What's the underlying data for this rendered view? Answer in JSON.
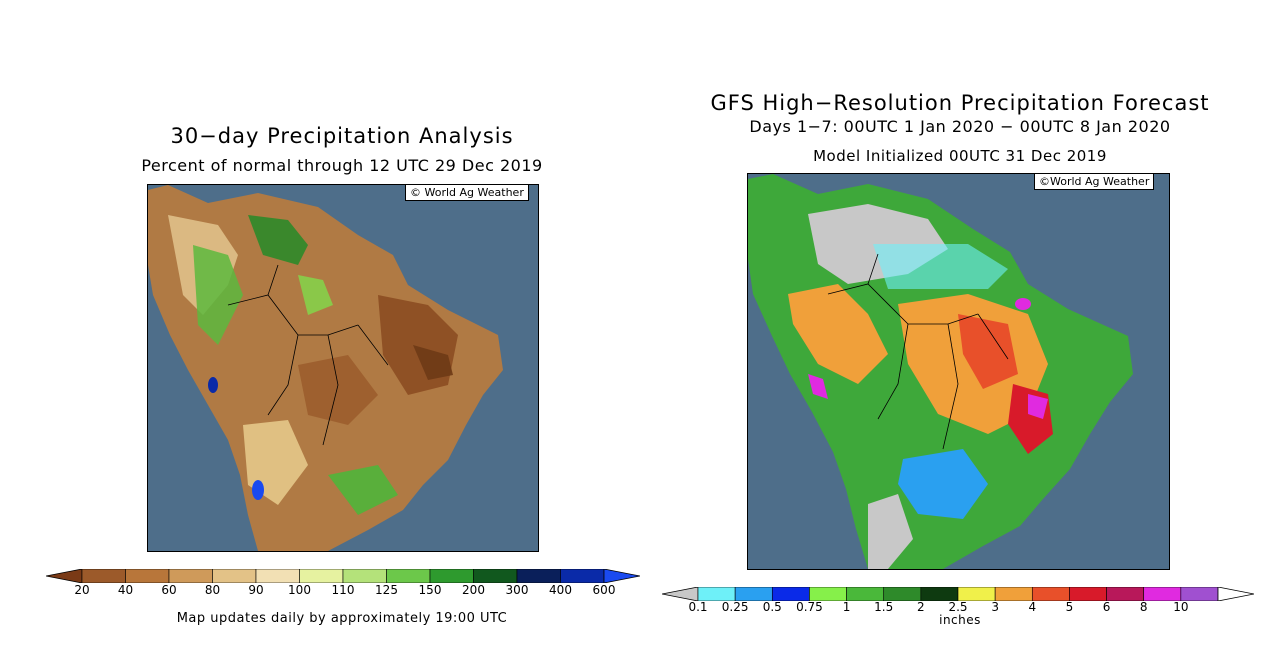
{
  "left_panel": {
    "title": "30−day Precipitation Analysis",
    "subtitle": "Percent of normal through 12 UTC 29 Dec 2019",
    "credit": "© World Ag Weather",
    "colorbar": {
      "ticks": [
        "20",
        "40",
        "60",
        "80",
        "90",
        "100",
        "110",
        "125",
        "150",
        "200",
        "300",
        "400",
        "600"
      ],
      "colors": [
        "#7a3a16",
        "#9c5a2a",
        "#b8763a",
        "#cf9a5a",
        "#e3c287",
        "#f2e0b4",
        "#e6f2a0",
        "#b4e27a",
        "#6cc84a",
        "#2e9a2e",
        "#11581e",
        "#0a1f5a",
        "#0a2aa8",
        "#1a4af0"
      ]
    },
    "footer": "Map updates daily by approximately 19:00 UTC"
  },
  "right_panel": {
    "title": "GFS High−Resolution Precipitation Forecast",
    "subtitle": "Days 1−7: 00UTC 1 Jan 2020 − 00UTC 8 Jan 2020",
    "init_line": "Model Initialized 00UTC 31 Dec 2019",
    "credit": "©World Ag Weather",
    "colorbar": {
      "ticks": [
        "0.1",
        "0.25",
        "0.5",
        "0.75",
        "1",
        "1.5",
        "2",
        "2.5",
        "3",
        "4",
        "5",
        "6",
        "8",
        "10"
      ],
      "colors": [
        "#c8c8c8",
        "#6ef0f8",
        "#2aa0f0",
        "#0a2ae8",
        "#86f04a",
        "#4ab83a",
        "#2e8a2a",
        "#0e3a10",
        "#f0f04a",
        "#f0a03a",
        "#e8502a",
        "#d81a2a",
        "#b8185a",
        "#e02ae0",
        "#a050d0",
        "#ffffff"
      ],
      "unit": "inches"
    }
  },
  "colors": {
    "ocean": "#4e6e8a",
    "background": "#ffffff"
  }
}
